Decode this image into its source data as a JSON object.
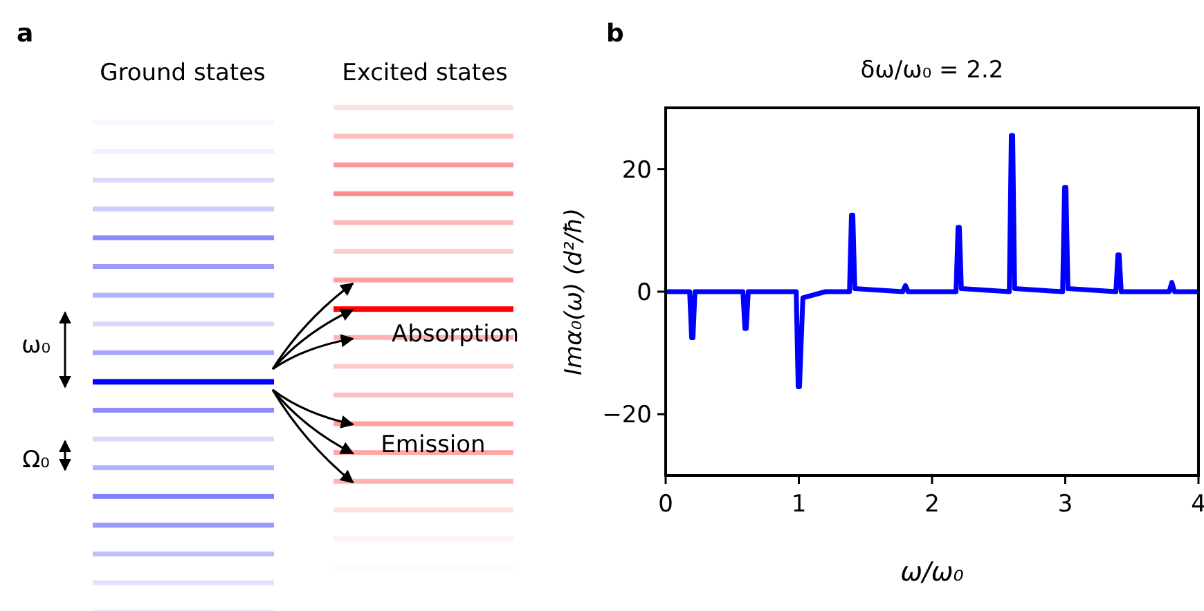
{
  "chart_data": [
    {
      "type": "other",
      "annotations": [
        "a",
        "Ground states",
        "Excited states",
        "ω₀",
        "Ω₀",
        "Absorption",
        "Emission"
      ]
    },
    {
      "type": "line",
      "title": "δω/ω₀ = 2.2",
      "xlabel": "ω/ω₀",
      "ylabel": "Imα₀(ω) (d²/ħ)",
      "annotations": [
        "b"
      ],
      "series": [
        {
          "color": "#0000ff",
          "x": [
            0,
            0.18,
            0.195,
            0.2,
            0.205,
            0.22,
            0.58,
            0.595,
            0.6,
            0.605,
            0.62,
            0.98,
            0.995,
            1.0,
            1.005,
            1.03,
            1.2,
            1.38,
            1.395,
            1.4,
            1.405,
            1.42,
            1.78,
            1.8,
            1.82,
            2.18,
            2.195,
            2.2,
            2.205,
            2.22,
            2.58,
            2.595,
            2.6,
            2.605,
            2.62,
            2.98,
            2.995,
            3.0,
            3.005,
            3.02,
            3.38,
            3.395,
            3.4,
            3.405,
            3.42,
            3.78,
            3.8,
            3.82,
            4.0
          ],
          "values": [
            0,
            0,
            -7.5,
            -7.5,
            -7.5,
            0,
            0,
            -6,
            -6,
            -6,
            0,
            0,
            -15.5,
            -15.5,
            -15.5,
            -1,
            0,
            0,
            12.5,
            12.5,
            12.5,
            0.5,
            0,
            1,
            0,
            0,
            10.5,
            10.5,
            10.5,
            0.5,
            0,
            25.5,
            25.5,
            25.5,
            0.5,
            0,
            17,
            17,
            17,
            0.5,
            0,
            6,
            6,
            6,
            0,
            0,
            1.5,
            0,
            0
          ]
        }
      ],
      "xlim": [
        0,
        4
      ],
      "xticks": [
        0,
        1,
        2,
        3,
        4
      ],
      "ylim": [
        -30,
        30
      ],
      "yticks": [
        {
          "value": -20,
          "label": "−20"
        },
        0,
        20
      ]
    }
  ]
}
